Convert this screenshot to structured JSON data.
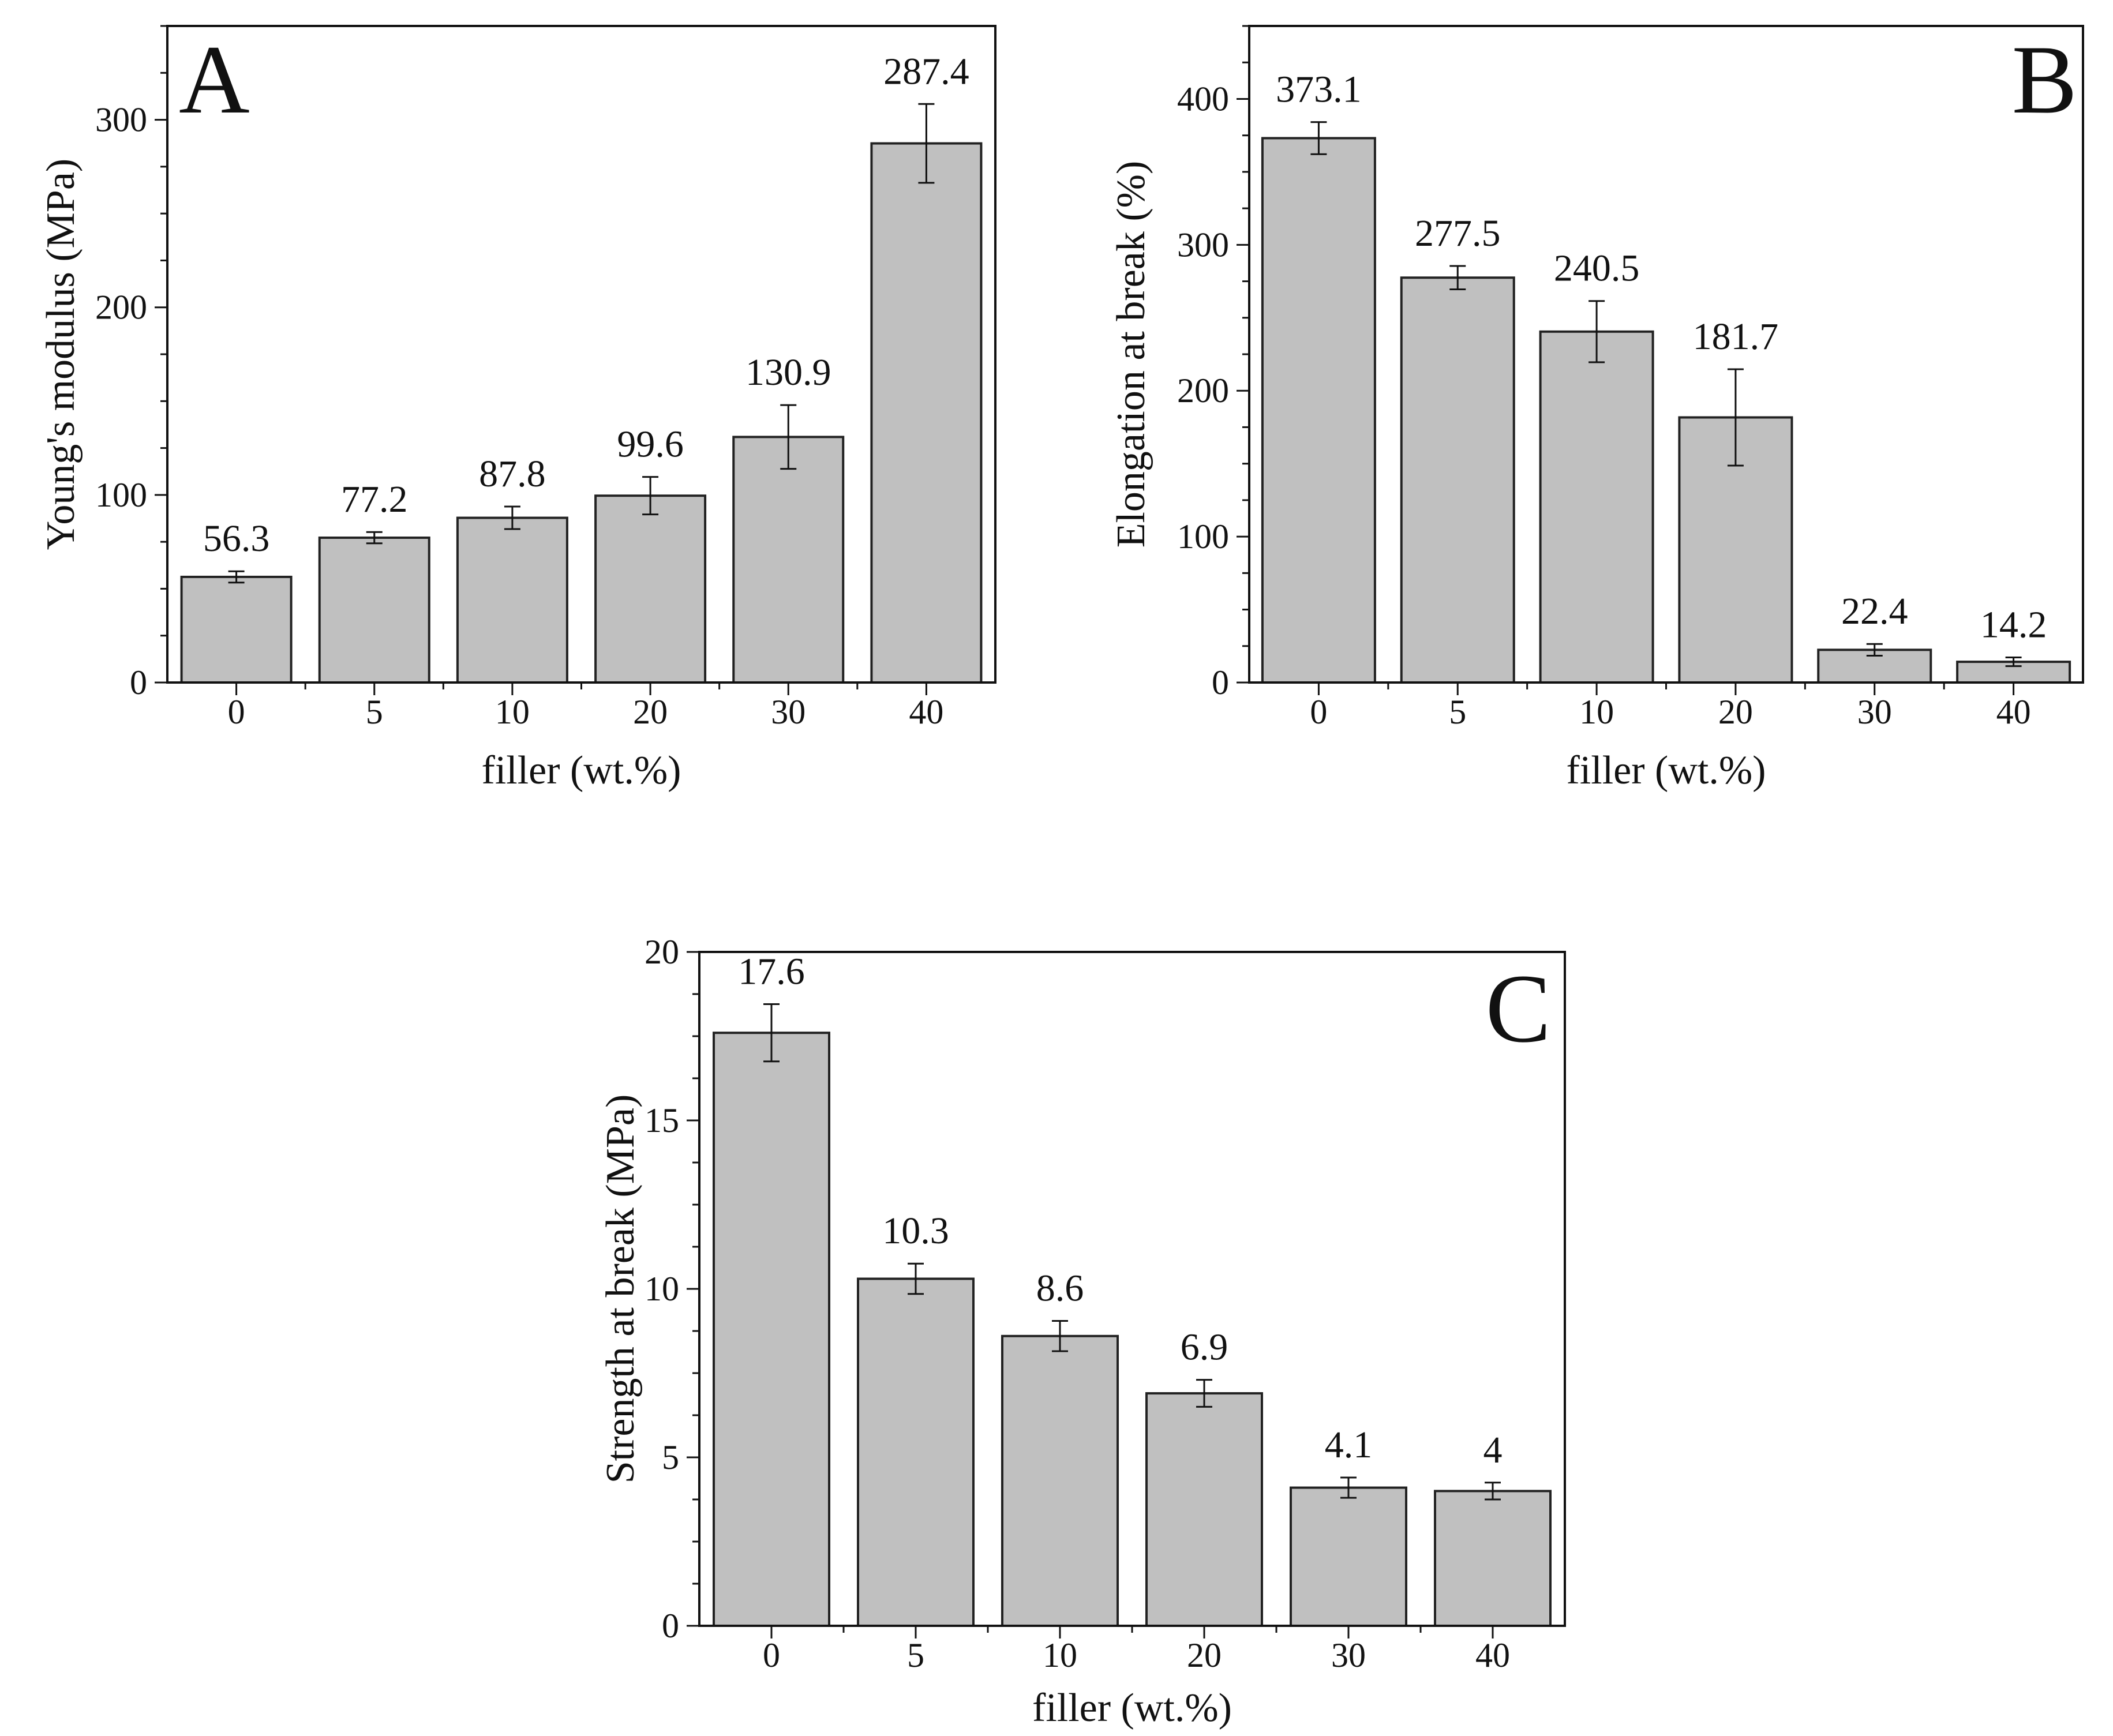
{
  "colors": {
    "bar_fill": "#c0c0c0",
    "bar_stroke": "#222222",
    "axis": "#111111",
    "background": "#ffffff"
  },
  "chart_data": [
    {
      "type": "bar",
      "panel": "A",
      "title": "",
      "xlabel": "filler (wt.%)",
      "ylabel": "Young's modulus (MPa)",
      "categories": [
        "0",
        "5",
        "10",
        "20",
        "30",
        "40"
      ],
      "values": [
        56.3,
        77.2,
        87.8,
        99.6,
        130.9,
        287.4
      ],
      "value_labels": [
        "56.3",
        "77.2",
        "87.8",
        "99.6",
        "130.9",
        "287.4"
      ],
      "errors": [
        3,
        3,
        6,
        10,
        17,
        21
      ],
      "ylim": [
        0,
        350
      ],
      "yticks": [
        0,
        100,
        200,
        300
      ],
      "ytick_labels": [
        "0",
        "100",
        "200",
        "300"
      ],
      "grid": false,
      "legend": "none"
    },
    {
      "type": "bar",
      "panel": "B",
      "title": "",
      "xlabel": "filler (wt.%)",
      "ylabel": "Elongation at break (%)",
      "categories": [
        "0",
        "5",
        "10",
        "20",
        "30",
        "40"
      ],
      "values": [
        373.1,
        277.5,
        240.5,
        181.7,
        22.4,
        14.2
      ],
      "value_labels": [
        "373.1",
        "277.5",
        "240.5",
        "181.7",
        "22.4",
        "14.2"
      ],
      "errors": [
        11,
        8,
        21,
        33,
        4,
        3
      ],
      "ylim": [
        0,
        450
      ],
      "yticks": [
        0,
        100,
        200,
        300,
        400
      ],
      "ytick_labels": [
        "0",
        "100",
        "200",
        "300",
        "400"
      ],
      "grid": false,
      "legend": "none"
    },
    {
      "type": "bar",
      "panel": "C",
      "title": "",
      "xlabel": "filler (wt.%)",
      "ylabel": "Strength at break (MPa)",
      "categories": [
        "0",
        "5",
        "10",
        "20",
        "30",
        "40"
      ],
      "values": [
        17.6,
        10.3,
        8.6,
        6.9,
        4.1,
        4
      ],
      "value_labels": [
        "17.6",
        "10.3",
        "8.6",
        "6.9",
        "4.1",
        "4"
      ],
      "errors": [
        0.85,
        0.45,
        0.45,
        0.4,
        0.3,
        0.25
      ],
      "ylim": [
        0,
        20
      ],
      "yticks": [
        0,
        5,
        10,
        15,
        20
      ],
      "ytick_labels": [
        "0",
        "5",
        "10",
        "15",
        "20"
      ],
      "grid": false,
      "legend": "none"
    }
  ]
}
